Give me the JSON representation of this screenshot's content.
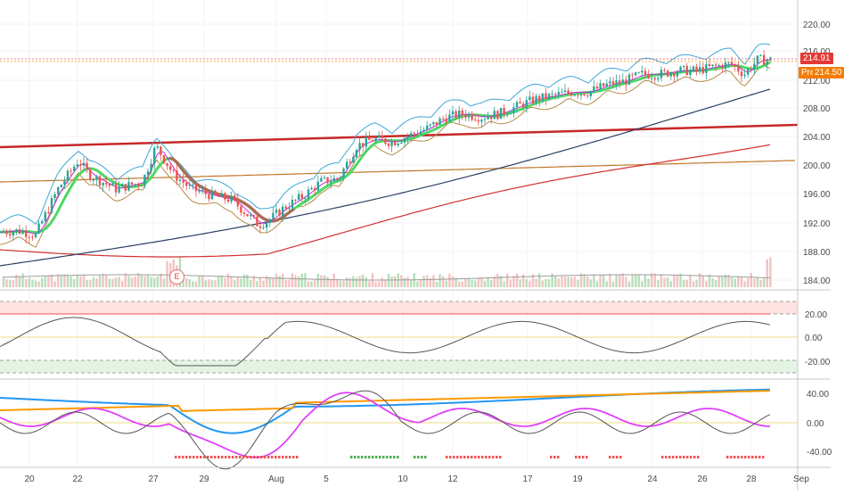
{
  "price_axis": {
    "ticks": [
      "220.00",
      "216.00",
      "212.00",
      "208.00",
      "204.00",
      "200.00",
      "196.00",
      "192.00",
      "188.00",
      "184.00"
    ],
    "last_price": "214.91",
    "pre_label": "Pre",
    "pre_price": "214.50"
  },
  "oscillator1_axis": {
    "ticks": [
      "20.00",
      "0.00",
      "-20.00"
    ]
  },
  "oscillator2_axis": {
    "ticks": [
      "40.00",
      "0.00",
      "-40.00"
    ]
  },
  "time_axis": {
    "ticks": [
      "20",
      "22",
      "27",
      "29",
      "Aug",
      "5",
      "10",
      "12",
      "17",
      "19",
      "24",
      "26",
      "28",
      "Sep"
    ]
  },
  "earnings_marker": "E",
  "colors": {
    "up": "#26a69a",
    "down": "#ef5350",
    "ema_green": "#4caf50",
    "ma_navy": "#2b4164",
    "ma_orange": "#c1762a",
    "ma_red": "#d32f2f",
    "trend_red": "#c62828",
    "osc_line": "#555555",
    "macd_blue": "#2196f3",
    "macd_orange": "#ff9800",
    "macd_magenta": "#e040fb"
  }
}
